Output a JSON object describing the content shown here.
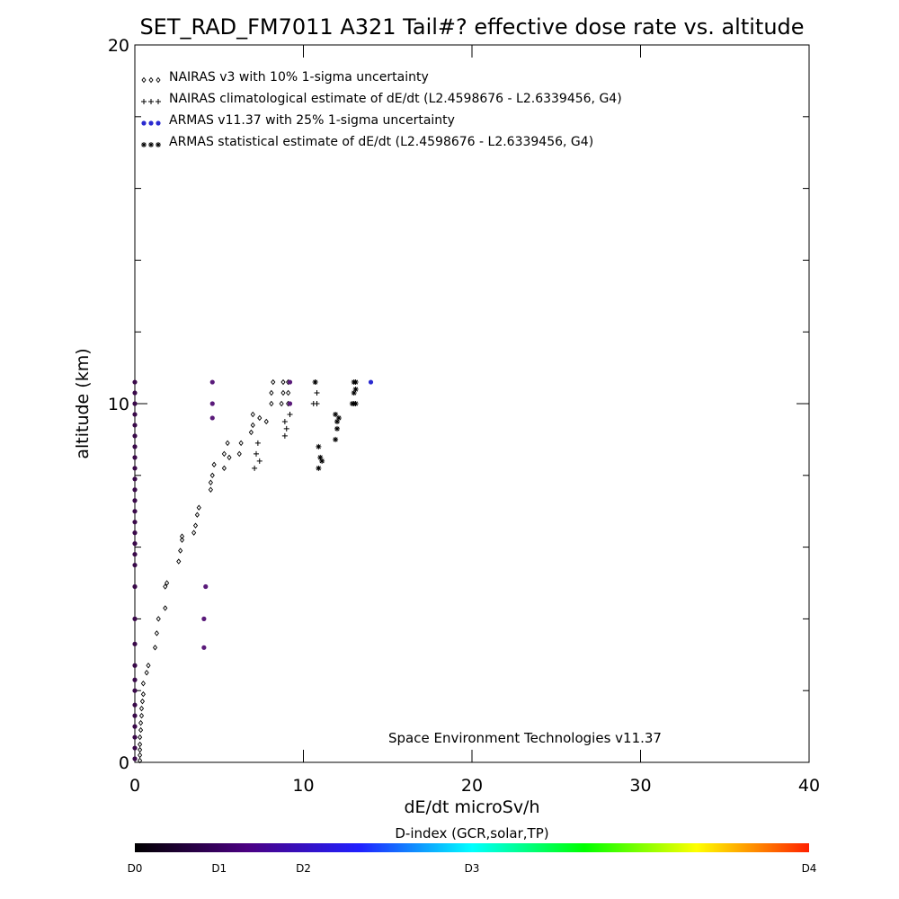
{
  "chart_data": {
    "type": "scatter",
    "title": "SET_RAD_FM7011  A321 Tail#? effective dose rate vs. altitude",
    "xlabel": "dE/dt microSv/h",
    "ylabel": "altitude (km)",
    "xlim": [
      0,
      40
    ],
    "ylim": [
      0,
      20
    ],
    "x_ticks": [
      0,
      10,
      20,
      30,
      40
    ],
    "x_tick_labels": [
      "0",
      "10",
      "20",
      "30",
      "40"
    ],
    "y_ticks": [
      0,
      10,
      20
    ],
    "y_tick_labels": [
      "0",
      "10",
      "20"
    ],
    "y_minor_ticks": [
      2,
      4,
      6,
      8,
      12,
      14,
      16,
      18
    ],
    "grid": false,
    "legend_position": "top-left",
    "legend": [
      {
        "marker": "diamond",
        "label": "NAIRAS v3 with 10% 1-sigma uncertainty"
      },
      {
        "marker": "plus",
        "label": "NAIRAS climatological estimate of dE/dt (L2.4598676 - L2.6339456, G4)"
      },
      {
        "marker": "dot",
        "label": "ARMAS v11.37 with 25% 1-sigma uncertainty"
      },
      {
        "marker": "asterisk",
        "label": "ARMAS statistical estimate of dE/dt (L2.4598676 - L2.6339456, G4)"
      }
    ],
    "annotation": "Space Environment Technologies v11.37",
    "series": [
      {
        "marker": "diamond",
        "points": [
          [
            0.3,
            0.05
          ],
          [
            0.3,
            0.2
          ],
          [
            0.3,
            0.35
          ],
          [
            0.3,
            0.5
          ],
          [
            0.3,
            0.7
          ],
          [
            0.35,
            0.9
          ],
          [
            0.35,
            1.1
          ],
          [
            0.4,
            1.3
          ],
          [
            0.4,
            1.5
          ],
          [
            0.45,
            1.7
          ],
          [
            0.5,
            1.9
          ],
          [
            0.5,
            2.2
          ],
          [
            0.7,
            2.5
          ],
          [
            0.8,
            2.7
          ],
          [
            1.2,
            3.2
          ],
          [
            1.3,
            3.6
          ],
          [
            1.4,
            4.0
          ],
          [
            1.8,
            4.3
          ],
          [
            1.8,
            4.9
          ],
          [
            1.9,
            5.0
          ],
          [
            2.6,
            5.6
          ],
          [
            2.7,
            5.9
          ],
          [
            2.8,
            6.2
          ],
          [
            2.8,
            6.3
          ],
          [
            3.5,
            6.4
          ],
          [
            3.6,
            6.6
          ],
          [
            3.7,
            6.9
          ],
          [
            3.8,
            7.1
          ],
          [
            4.5,
            7.6
          ],
          [
            4.5,
            7.8
          ],
          [
            4.6,
            8.0
          ],
          [
            4.7,
            8.3
          ],
          [
            5.3,
            8.2
          ],
          [
            5.3,
            8.6
          ],
          [
            5.5,
            8.9
          ],
          [
            5.6,
            8.5
          ],
          [
            6.2,
            8.6
          ],
          [
            6.3,
            8.9
          ],
          [
            6.9,
            9.2
          ],
          [
            7.0,
            9.4
          ],
          [
            7.0,
            9.7
          ],
          [
            7.4,
            9.6
          ],
          [
            7.8,
            9.5
          ],
          [
            8.1,
            10.0
          ],
          [
            8.1,
            10.3
          ],
          [
            8.2,
            10.6
          ],
          [
            8.7,
            10.0
          ],
          [
            8.8,
            10.3
          ],
          [
            8.8,
            10.6
          ],
          [
            9.1,
            10.0
          ],
          [
            9.1,
            10.3
          ],
          [
            9.1,
            10.6
          ]
        ]
      },
      {
        "marker": "plus",
        "points": [
          [
            7.1,
            8.2
          ],
          [
            7.2,
            8.6
          ],
          [
            7.4,
            8.4
          ],
          [
            7.3,
            8.9
          ],
          [
            8.9,
            9.1
          ],
          [
            9.0,
            9.3
          ],
          [
            8.9,
            9.5
          ],
          [
            9.2,
            9.7
          ],
          [
            10.6,
            10.0
          ],
          [
            10.8,
            10.0
          ],
          [
            10.8,
            10.3
          ],
          [
            10.7,
            10.6
          ]
        ]
      },
      {
        "marker": "dot",
        "points": [
          [
            0,
            10.6
          ],
          [
            0,
            10.3
          ],
          [
            0,
            10.0
          ],
          [
            0,
            9.7
          ],
          [
            0,
            9.4
          ],
          [
            0,
            9.1
          ],
          [
            0,
            8.8
          ],
          [
            0,
            8.5
          ],
          [
            0,
            8.2
          ],
          [
            0,
            7.9
          ],
          [
            0,
            7.6
          ],
          [
            0,
            7.3
          ],
          [
            0,
            7.0
          ],
          [
            0,
            6.7
          ],
          [
            0,
            6.4
          ],
          [
            0,
            6.1
          ],
          [
            0,
            5.8
          ],
          [
            0,
            5.5
          ],
          [
            0,
            4.9
          ],
          [
            0,
            4.0
          ],
          [
            0,
            3.3
          ],
          [
            0,
            2.7
          ],
          [
            0,
            2.3
          ],
          [
            0,
            2.0
          ],
          [
            0,
            1.6
          ],
          [
            0,
            1.3
          ],
          [
            0,
            1.0
          ],
          [
            0,
            0.7
          ],
          [
            0,
            0.4
          ],
          [
            0,
            0.1
          ],
          [
            4.2,
            4.9
          ],
          [
            4.1,
            4.0
          ],
          [
            4.1,
            3.2
          ],
          [
            4.6,
            9.6
          ],
          [
            4.6,
            10.0
          ],
          [
            4.6,
            10.6
          ],
          [
            9.2,
            10.0
          ],
          [
            9.2,
            10.6
          ],
          [
            14.0,
            10.6
          ]
        ]
      },
      {
        "marker": "asterisk",
        "points": [
          [
            10.9,
            8.2
          ],
          [
            11.0,
            8.5
          ],
          [
            10.9,
            8.8
          ],
          [
            11.1,
            8.4
          ],
          [
            11.9,
            9.0
          ],
          [
            12.0,
            9.3
          ],
          [
            12.0,
            9.5
          ],
          [
            11.9,
            9.7
          ],
          [
            12.1,
            9.6
          ],
          [
            12.9,
            10.0
          ],
          [
            13.0,
            10.0
          ],
          [
            13.1,
            10.0
          ],
          [
            13.0,
            10.3
          ],
          [
            13.1,
            10.4
          ],
          [
            13.0,
            10.6
          ],
          [
            13.1,
            10.6
          ],
          [
            10.7,
            10.6
          ]
        ]
      }
    ],
    "colorbar": {
      "title": "D-index (GCR,solar,TP)",
      "tick_labels": [
        "D0",
        "D1",
        "D2",
        "D3",
        "D4"
      ],
      "tick_positions": [
        0,
        0.125,
        0.25,
        0.5,
        1.0
      ],
      "colors": [
        "#000000",
        "#4b0082",
        "#2020ff",
        "#00ffff",
        "#00ff00",
        "#ffff00",
        "#ff2000"
      ]
    },
    "colors": {
      "dot_dark": "#3a0a4a",
      "dot_purple": "#5a1a7a",
      "dot_blue": "#2a2ad0",
      "marker": "#000000"
    }
  }
}
